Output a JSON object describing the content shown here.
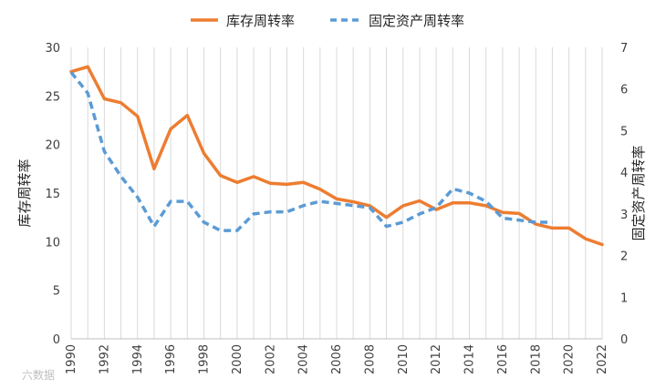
{
  "chart_data": {
    "type": "line",
    "title": "",
    "x": [
      1990,
      1991,
      1992,
      1993,
      1994,
      1995,
      1996,
      1997,
      1998,
      1999,
      2000,
      2001,
      2002,
      2003,
      2004,
      2005,
      2006,
      2007,
      2008,
      2009,
      2010,
      2011,
      2012,
      2013,
      2014,
      2015,
      2016,
      2017,
      2018,
      2019,
      2020,
      2021,
      2022
    ],
    "x_tick_labels": [
      "1990",
      "1992",
      "1994",
      "1996",
      "1998",
      "2000",
      "2002",
      "2004",
      "2006",
      "2008",
      "2010",
      "2012",
      "2014",
      "2016",
      "2018",
      "2020",
      "2022"
    ],
    "ylabel": "库存周转率",
    "y2label": "固定资产周转率",
    "ylim": [
      0,
      30
    ],
    "y_ticks": [
      "0",
      "5",
      "10",
      "15",
      "20",
      "25",
      "30"
    ],
    "y2lim": [
      0,
      7
    ],
    "y2_ticks": [
      "0",
      "1",
      "2",
      "3",
      "4",
      "5",
      "6",
      "7"
    ],
    "grid": "vertical",
    "legend_position": "top",
    "series": [
      {
        "name": "库存周转率",
        "axis": "left",
        "style": "solid",
        "color": "#ED7D31",
        "values": [
          27.5,
          28.0,
          24.7,
          24.3,
          22.9,
          17.5,
          21.6,
          23.0,
          19.1,
          16.8,
          16.1,
          16.7,
          16.0,
          15.9,
          16.1,
          15.4,
          14.4,
          14.1,
          13.7,
          12.5,
          13.7,
          14.2,
          13.3,
          14.0,
          14.0,
          13.7,
          13.0,
          12.9,
          11.8,
          11.4,
          11.4,
          10.3,
          9.7
        ]
      },
      {
        "name": "固定资产周转率",
        "axis": "right",
        "style": "dashed",
        "color": "#5B9BD5",
        "values": [
          6.4,
          5.9,
          4.5,
          3.9,
          3.4,
          2.7,
          3.3,
          3.3,
          2.8,
          2.6,
          2.6,
          3.0,
          3.05,
          3.05,
          3.2,
          3.3,
          3.25,
          3.2,
          3.15,
          2.7,
          2.8,
          3.0,
          3.15,
          3.6,
          3.5,
          3.3,
          2.9,
          2.85,
          2.8,
          2.8,
          null,
          null,
          null
        ]
      }
    ]
  },
  "watermark": "六数据"
}
